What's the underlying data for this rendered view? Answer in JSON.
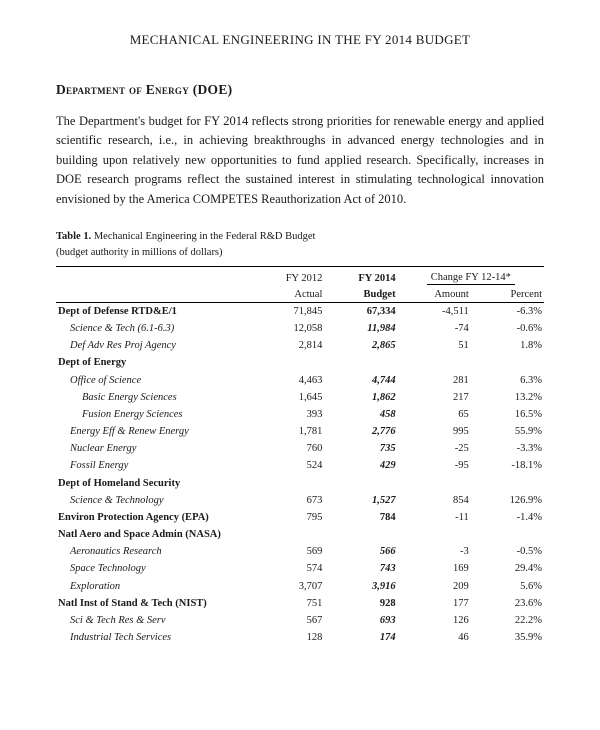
{
  "doc": {
    "title": "MECHANICAL ENGINEERING IN THE FY 2014 BUDGET",
    "section_heading": "Department of Energy (DOE)",
    "paragraph": "The Department's budget for FY 2014 reflects strong priorities for renewable energy and applied scientific research, i.e., in achieving breakthroughs in advanced energy technologies and in building upon relatively new opportunities to fund applied research. Specifically, increases in DOE research programs reflect the sustained interest in stimulating technological innovation envisioned by the America COMPETES Reauthorization Act of 2010."
  },
  "table": {
    "caption_num": "Table 1.",
    "caption_line1": "Mechanical Engineering in the Federal R&D Budget",
    "caption_line2": "(budget authority in millions of dollars)",
    "header": {
      "c1": "FY 2012",
      "c1b": "Actual",
      "c2": "FY 2014",
      "c2b": "Budget",
      "grp": "Change FY 12-14*",
      "c3": "Amount",
      "c4": "Percent"
    },
    "rows": [
      {
        "cls": "row-head",
        "label": "Dept of Defense RTD&E/1",
        "a": "71,845",
        "b": "67,334",
        "c": "-4,511",
        "d": "-6.3%"
      },
      {
        "cls": "row-sub",
        "label": "Science & Tech (6.1-6.3)",
        "a": "12,058",
        "b": "11,984",
        "c": "-74",
        "d": "-0.6%"
      },
      {
        "cls": "row-sub",
        "label": "Def Adv Res Proj Agency",
        "a": "2,814",
        "b": "2,865",
        "c": "51",
        "d": "1.8%"
      },
      {
        "cls": "row-head",
        "label": "Dept of Energy",
        "a": "",
        "b": "",
        "c": "",
        "d": ""
      },
      {
        "cls": "row-sub",
        "label": "Office of Science",
        "a": "4,463",
        "b": "4,744",
        "c": "281",
        "d": "6.3%"
      },
      {
        "cls": "row-subsub",
        "label": "Basic Energy Sciences",
        "a": "1,645",
        "b": "1,862",
        "c": "217",
        "d": "13.2%"
      },
      {
        "cls": "row-subsub",
        "label": "Fusion Energy Sciences",
        "a": "393",
        "b": "458",
        "c": "65",
        "d": "16.5%"
      },
      {
        "cls": "row-sub",
        "label": "Energy Eff & Renew Energy",
        "a": "1,781",
        "b": "2,776",
        "c": "995",
        "d": "55.9%"
      },
      {
        "cls": "row-sub",
        "label": "Nuclear Energy",
        "a": "760",
        "b": "735",
        "c": "-25",
        "d": "-3.3%"
      },
      {
        "cls": "row-sub",
        "label": "Fossil Energy",
        "a": "524",
        "b": "429",
        "c": "-95",
        "d": "-18.1%"
      },
      {
        "cls": "row-head",
        "label": "Dept of Homeland Security",
        "a": "",
        "b": "",
        "c": "",
        "d": ""
      },
      {
        "cls": "row-sub",
        "label": "Science & Technology",
        "a": "673",
        "b": "1,527",
        "c": "854",
        "d": "126.9%"
      },
      {
        "cls": "row-head",
        "label": "Environ Protection Agency (EPA)",
        "a": "795",
        "b": "784",
        "c": "-11",
        "d": "-1.4%"
      },
      {
        "cls": "row-head",
        "label": "Natl Aero and Space Admin (NASA)",
        "a": "",
        "b": "",
        "c": "",
        "d": ""
      },
      {
        "cls": "row-sub",
        "label": "Aeronautics Research",
        "a": "569",
        "b": "566",
        "c": "-3",
        "d": "-0.5%"
      },
      {
        "cls": "row-sub",
        "label": "Space Technology",
        "a": "574",
        "b": "743",
        "c": "169",
        "d": "29.4%"
      },
      {
        "cls": "row-sub",
        "label": "Exploration",
        "a": "3,707",
        "b": "3,916",
        "c": "209",
        "d": "5.6%"
      },
      {
        "cls": "row-head",
        "label": "Natl Inst of Stand & Tech (NIST)",
        "a": "751",
        "b": "928",
        "c": "177",
        "d": "23.6%"
      },
      {
        "cls": "row-sub",
        "label": "Sci & Tech Res & Serv",
        "a": "567",
        "b": "693",
        "c": "126",
        "d": "22.2%"
      },
      {
        "cls": "row-sub",
        "label": "Industrial Tech Services",
        "a": "128",
        "b": "174",
        "c": "46",
        "d": "35.9%"
      }
    ]
  }
}
